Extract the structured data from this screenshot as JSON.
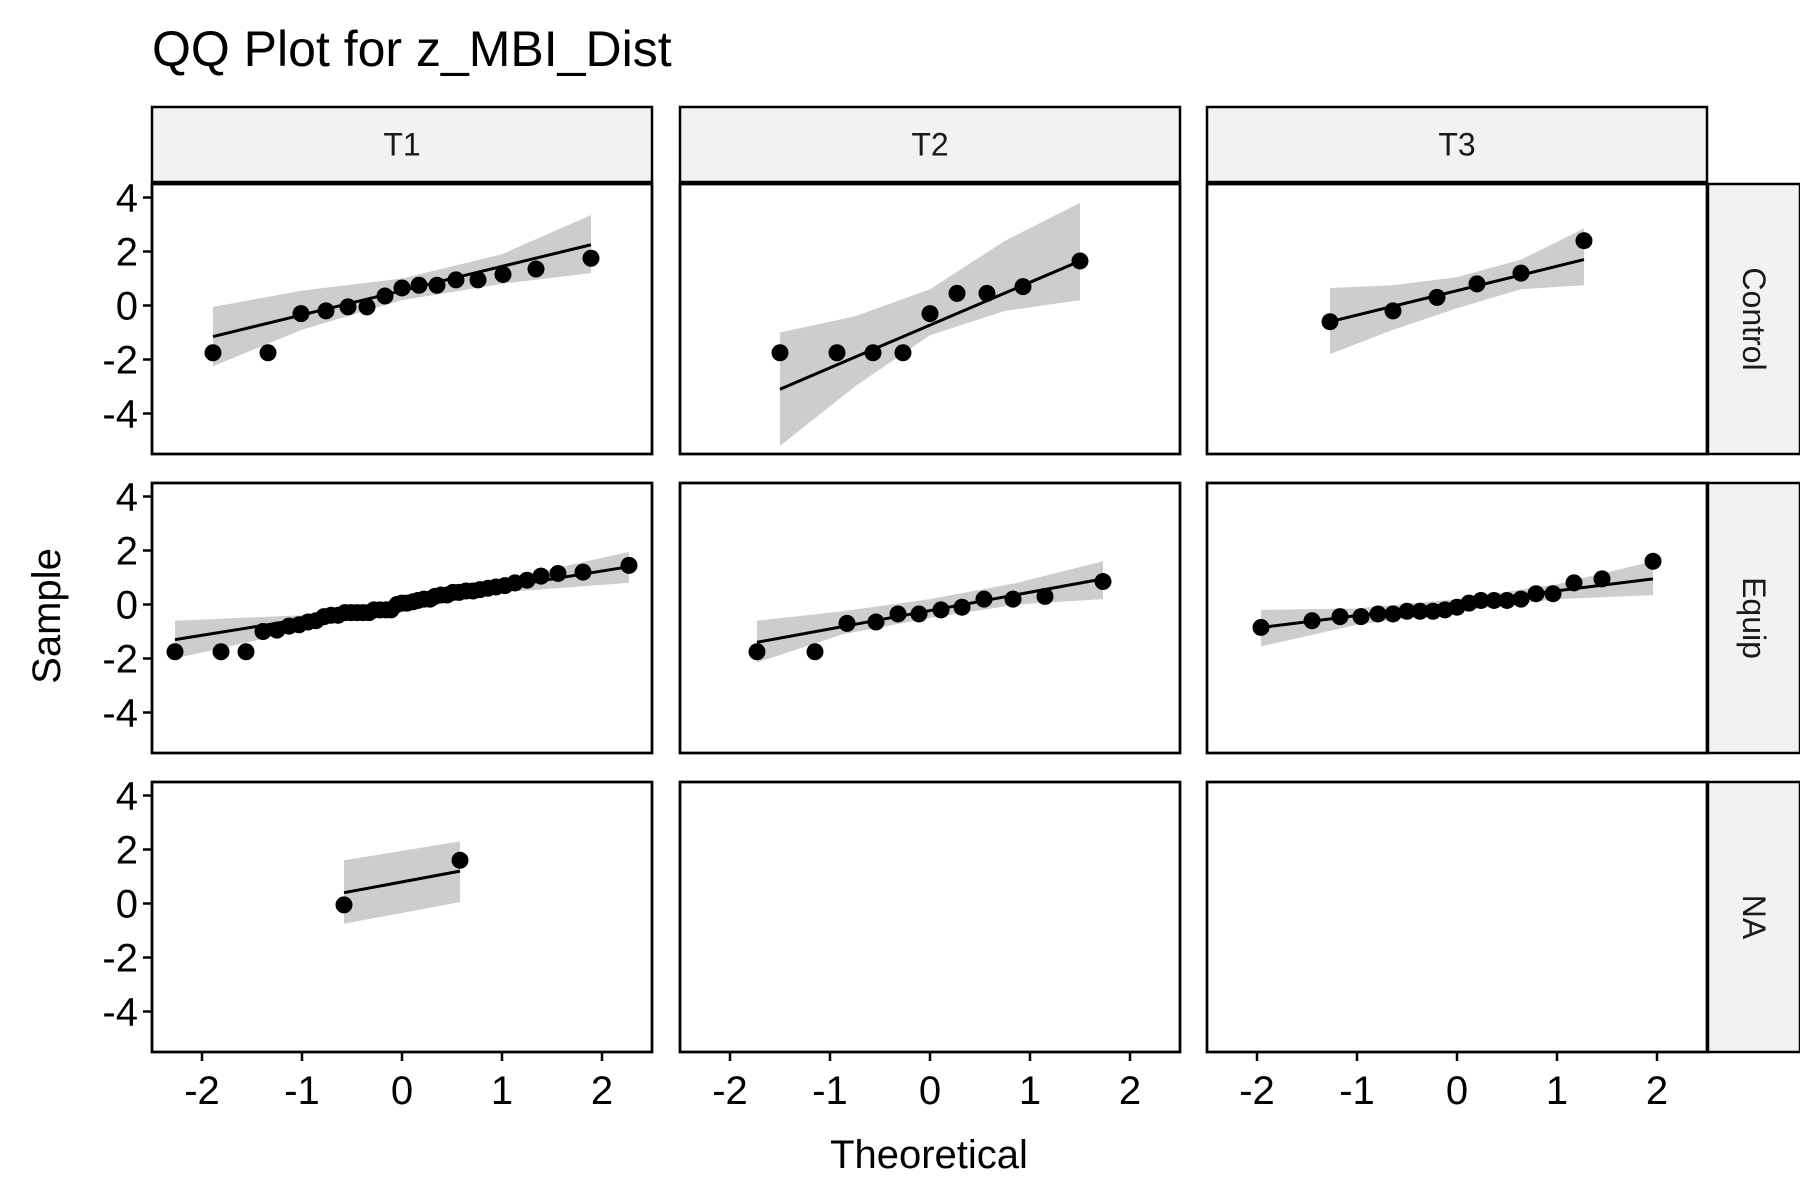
{
  "chart_data": {
    "type": "scatter",
    "title": "QQ Plot for z_MBI_Dist",
    "xlabel": "Theoretical",
    "ylabel": "Sample",
    "xlim": [
      -2.5,
      2.5
    ],
    "ylim": [
      -5.5,
      4.5
    ],
    "x_ticks": [
      -2,
      -1,
      0,
      1,
      2
    ],
    "y_ticks": [
      -4,
      -2,
      0,
      2,
      4
    ],
    "col_facets": [
      "T1",
      "T2",
      "T3"
    ],
    "row_facets": [
      "Control",
      "Equip",
      "NA"
    ],
    "panels": [
      {
        "row": "Control",
        "col": "T1",
        "line": {
          "x": [
            -1.89,
            1.89
          ],
          "y": [
            -1.15,
            2.25
          ]
        },
        "band": {
          "x": [
            -1.89,
            -1.0,
            0,
            1.0,
            1.89
          ],
          "lower": [
            -2.25,
            -0.9,
            0.2,
            0.8,
            1.2
          ],
          "upper": [
            -0.05,
            0.55,
            1.0,
            1.9,
            3.35
          ]
        },
        "points": [
          [
            -1.89,
            -1.75
          ],
          [
            -1.34,
            -1.75
          ],
          [
            -1.01,
            -0.3
          ],
          [
            -0.76,
            -0.2
          ],
          [
            -0.54,
            -0.05
          ],
          [
            -0.35,
            -0.05
          ],
          [
            -0.17,
            0.35
          ],
          [
            0.0,
            0.65
          ],
          [
            0.17,
            0.75
          ],
          [
            0.35,
            0.75
          ],
          [
            0.54,
            0.95
          ],
          [
            0.76,
            0.95
          ],
          [
            1.01,
            1.15
          ],
          [
            1.34,
            1.35
          ],
          [
            1.89,
            1.75
          ]
        ]
      },
      {
        "row": "Control",
        "col": "T2",
        "line": {
          "x": [
            -1.5,
            1.5
          ],
          "y": [
            -3.1,
            1.65
          ]
        },
        "band": {
          "x": [
            -1.5,
            -0.75,
            0,
            0.75,
            1.5
          ],
          "lower": [
            -5.2,
            -3.0,
            -1.1,
            -0.2,
            0.2
          ],
          "upper": [
            -1.0,
            -0.4,
            0.6,
            2.4,
            3.8
          ]
        },
        "points": [
          [
            -1.5,
            -1.75
          ],
          [
            -0.93,
            -1.75
          ],
          [
            -0.57,
            -1.75
          ],
          [
            -0.27,
            -1.75
          ],
          [
            0.0,
            -0.3
          ],
          [
            0.27,
            0.45
          ],
          [
            0.57,
            0.45
          ],
          [
            0.93,
            0.7
          ],
          [
            1.5,
            1.65
          ]
        ]
      },
      {
        "row": "Control",
        "col": "T3",
        "line": {
          "x": [
            -1.27,
            1.27
          ],
          "y": [
            -0.6,
            1.7
          ]
        },
        "band": {
          "x": [
            -1.27,
            -0.64,
            0,
            0.64,
            1.27
          ],
          "lower": [
            -1.8,
            -0.9,
            -0.1,
            0.6,
            0.75
          ],
          "upper": [
            0.65,
            0.75,
            1.05,
            1.7,
            2.85
          ]
        },
        "points": [
          [
            -1.27,
            -0.6
          ],
          [
            -0.64,
            -0.2
          ],
          [
            -0.2,
            0.3
          ],
          [
            0.2,
            0.8
          ],
          [
            0.64,
            1.2
          ],
          [
            1.27,
            2.4
          ]
        ]
      },
      {
        "row": "Equip",
        "col": "T1",
        "line": {
          "x": [
            -2.27,
            2.27
          ],
          "y": [
            -1.3,
            1.4
          ]
        },
        "band": {
          "x": [
            -2.27,
            -1.0,
            0,
            1.0,
            2.27
          ],
          "lower": [
            -2.0,
            -0.95,
            -0.15,
            0.45,
            0.8
          ],
          "upper": [
            -0.6,
            -0.4,
            0.15,
            0.9,
            1.95
          ]
        },
        "points": [
          [
            -2.27,
            -1.75
          ],
          [
            -1.81,
            -1.75
          ],
          [
            -1.56,
            -1.75
          ],
          [
            -1.39,
            -1.0
          ],
          [
            -1.25,
            -0.95
          ],
          [
            -1.13,
            -0.8
          ],
          [
            -1.03,
            -0.75
          ],
          [
            -0.94,
            -0.65
          ],
          [
            -0.86,
            -0.6
          ],
          [
            -0.78,
            -0.45
          ],
          [
            -0.71,
            -0.4
          ],
          [
            -0.64,
            -0.4
          ],
          [
            -0.57,
            -0.3
          ],
          [
            -0.51,
            -0.3
          ],
          [
            -0.45,
            -0.3
          ],
          [
            -0.39,
            -0.3
          ],
          [
            -0.33,
            -0.3
          ],
          [
            -0.28,
            -0.2
          ],
          [
            -0.22,
            -0.2
          ],
          [
            -0.16,
            -0.2
          ],
          [
            -0.11,
            -0.2
          ],
          [
            -0.05,
            0.0
          ],
          [
            0.0,
            0.05
          ],
          [
            0.05,
            0.05
          ],
          [
            0.11,
            0.1
          ],
          [
            0.16,
            0.15
          ],
          [
            0.22,
            0.2
          ],
          [
            0.28,
            0.2
          ],
          [
            0.33,
            0.3
          ],
          [
            0.39,
            0.35
          ],
          [
            0.45,
            0.35
          ],
          [
            0.51,
            0.45
          ],
          [
            0.57,
            0.45
          ],
          [
            0.64,
            0.5
          ],
          [
            0.71,
            0.5
          ],
          [
            0.78,
            0.55
          ],
          [
            0.86,
            0.6
          ],
          [
            0.94,
            0.65
          ],
          [
            1.03,
            0.7
          ],
          [
            1.13,
            0.8
          ],
          [
            1.25,
            0.9
          ],
          [
            1.39,
            1.05
          ],
          [
            1.56,
            1.15
          ],
          [
            1.81,
            1.2
          ],
          [
            2.27,
            1.45
          ]
        ]
      },
      {
        "row": "Equip",
        "col": "T2",
        "line": {
          "x": [
            -1.73,
            1.73
          ],
          "y": [
            -1.4,
            0.95
          ]
        },
        "band": {
          "x": [
            -1.73,
            -0.87,
            0,
            0.87,
            1.73
          ],
          "lower": [
            -2.15,
            -1.1,
            -0.5,
            0.0,
            0.2
          ],
          "upper": [
            -0.6,
            -0.25,
            0.2,
            0.8,
            1.6
          ]
        },
        "points": [
          [
            -1.73,
            -1.75
          ],
          [
            -1.15,
            -1.75
          ],
          [
            -0.83,
            -0.7
          ],
          [
            -0.54,
            -0.65
          ],
          [
            -0.32,
            -0.35
          ],
          [
            -0.11,
            -0.35
          ],
          [
            0.11,
            -0.2
          ],
          [
            0.32,
            -0.1
          ],
          [
            0.54,
            0.2
          ],
          [
            0.83,
            0.2
          ],
          [
            1.15,
            0.3
          ],
          [
            1.73,
            0.85
          ]
        ]
      },
      {
        "row": "Equip",
        "col": "T3",
        "line": {
          "x": [
            -1.96,
            1.96
          ],
          "y": [
            -0.85,
            0.95
          ]
        },
        "band": {
          "x": [
            -1.96,
            -1.0,
            0,
            1.0,
            1.96
          ],
          "lower": [
            -1.55,
            -0.75,
            -0.25,
            0.2,
            0.35
          ],
          "upper": [
            -0.2,
            -0.15,
            0.2,
            0.75,
            1.6
          ]
        },
        "points": [
          [
            -1.96,
            -0.85
          ],
          [
            -1.45,
            -0.6
          ],
          [
            -1.17,
            -0.45
          ],
          [
            -0.96,
            -0.45
          ],
          [
            -0.79,
            -0.35
          ],
          [
            -0.64,
            -0.35
          ],
          [
            -0.5,
            -0.25
          ],
          [
            -0.37,
            -0.25
          ],
          [
            -0.24,
            -0.25
          ],
          [
            -0.12,
            -0.2
          ],
          [
            0.0,
            -0.1
          ],
          [
            0.12,
            0.05
          ],
          [
            0.24,
            0.15
          ],
          [
            0.37,
            0.15
          ],
          [
            0.5,
            0.15
          ],
          [
            0.64,
            0.2
          ],
          [
            0.79,
            0.4
          ],
          [
            0.96,
            0.4
          ],
          [
            1.17,
            0.8
          ],
          [
            1.45,
            0.95
          ],
          [
            1.96,
            1.6
          ]
        ]
      },
      {
        "row": "NA",
        "col": "T1",
        "line": {
          "x": [
            -0.58,
            0.58
          ],
          "y": [
            0.4,
            1.2
          ]
        },
        "band": {
          "x": [
            -0.58,
            0.58
          ],
          "lower": [
            -0.75,
            0.05
          ],
          "upper": [
            1.6,
            2.3
          ]
        },
        "points": [
          [
            -0.58,
            -0.05
          ],
          [
            0.58,
            1.6
          ]
        ]
      },
      {
        "row": "NA",
        "col": "T2",
        "line": null,
        "band": null,
        "points": []
      },
      {
        "row": "NA",
        "col": "T3",
        "line": null,
        "band": null,
        "points": []
      }
    ]
  }
}
